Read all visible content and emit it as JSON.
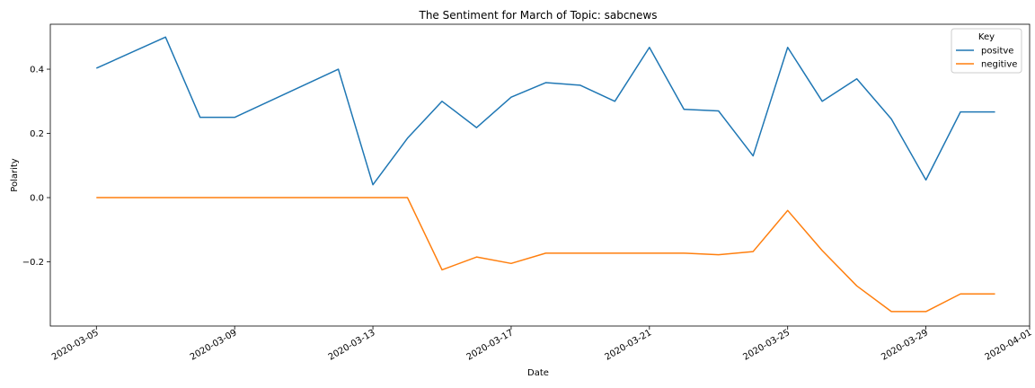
{
  "chart_data": {
    "type": "line",
    "title": "The Sentiment for March of Topic: sabcnews",
    "xlabel": "Date",
    "ylabel": "Polarity",
    "x_tick_labels": [
      "2020-03-05",
      "2020-03-09",
      "2020-03-13",
      "2020-03-17",
      "2020-03-21",
      "2020-03-25",
      "2020-03-29",
      "2020-04-01"
    ],
    "y_tick_labels": [
      "0.4",
      "0.2",
      "0.0",
      "−0.2"
    ],
    "ylim": [
      -0.4,
      0.54
    ],
    "xlim": [
      "2020-03-03T16:00",
      "2020-04-01T00:00"
    ],
    "legend": {
      "title": "Key",
      "position": "upper right"
    },
    "series": [
      {
        "name": "positve",
        "color": "#1f77b4",
        "points": [
          [
            "2020-03-05",
            0.403
          ],
          [
            "2020-03-07",
            0.5
          ],
          [
            "2020-03-08",
            0.25
          ],
          [
            "2020-03-09",
            0.25
          ],
          [
            "2020-03-12",
            0.4
          ],
          [
            "2020-03-13",
            0.04
          ],
          [
            "2020-03-14",
            0.185
          ],
          [
            "2020-03-15",
            0.3
          ],
          [
            "2020-03-16",
            0.218
          ],
          [
            "2020-03-17",
            0.313
          ],
          [
            "2020-03-18",
            0.358
          ],
          [
            "2020-03-19",
            0.35
          ],
          [
            "2020-03-20",
            0.3
          ],
          [
            "2020-03-21",
            0.468
          ],
          [
            "2020-03-22",
            0.275
          ],
          [
            "2020-03-23",
            0.27
          ],
          [
            "2020-03-24",
            0.13
          ],
          [
            "2020-03-25",
            0.468
          ],
          [
            "2020-03-26",
            0.3
          ],
          [
            "2020-03-27",
            0.37
          ],
          [
            "2020-03-28",
            0.245
          ],
          [
            "2020-03-29",
            0.055
          ],
          [
            "2020-03-30",
            0.267
          ],
          [
            "2020-03-31",
            0.267
          ]
        ]
      },
      {
        "name": "negitive",
        "color": "#ff7f0e",
        "points": [
          [
            "2020-03-05",
            0.0
          ],
          [
            "2020-03-14",
            0.0
          ],
          [
            "2020-03-15",
            -0.225
          ],
          [
            "2020-03-16",
            -0.185
          ],
          [
            "2020-03-17",
            -0.205
          ],
          [
            "2020-03-18",
            -0.173
          ],
          [
            "2020-03-22",
            -0.173
          ],
          [
            "2020-03-23",
            -0.178
          ],
          [
            "2020-03-24",
            -0.168
          ],
          [
            "2020-03-25",
            -0.04
          ],
          [
            "2020-03-26",
            -0.165
          ],
          [
            "2020-03-27",
            -0.275
          ],
          [
            "2020-03-28",
            -0.355
          ],
          [
            "2020-03-29",
            -0.355
          ],
          [
            "2020-03-30",
            -0.3
          ],
          [
            "2020-03-31",
            -0.3
          ]
        ]
      }
    ]
  }
}
